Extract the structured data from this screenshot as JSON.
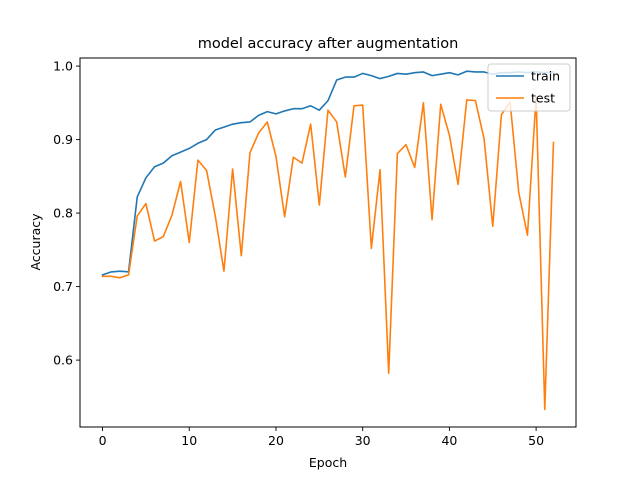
{
  "chart_data": {
    "type": "line",
    "title": "model accuracy after augmentation",
    "xlabel": "Epoch",
    "ylabel": "Accuracy",
    "xlim": [
      -2.6,
      54.6
    ],
    "ylim": [
      0.509,
      1.011
    ],
    "x_ticks": [
      0,
      10,
      20,
      30,
      40,
      50
    ],
    "y_ticks": [
      0.6,
      0.7,
      0.8,
      0.9,
      1.0
    ],
    "x_tick_labels": [
      "0",
      "10",
      "20",
      "30",
      "40",
      "50"
    ],
    "y_tick_labels": [
      "0.6",
      "0.7",
      "0.8",
      "0.9",
      "1.0"
    ],
    "legend_position": "upper-right",
    "grid": false,
    "series": [
      {
        "name": "train",
        "color": "#1f77b4",
        "x": [
          0,
          1,
          2,
          3,
          4,
          5,
          6,
          7,
          8,
          9,
          10,
          11,
          12,
          13,
          14,
          15,
          16,
          17,
          18,
          19,
          20,
          21,
          22,
          23,
          24,
          25,
          26,
          27,
          28,
          29,
          30,
          31,
          32,
          33,
          34,
          35,
          36,
          37,
          38,
          39,
          40,
          41,
          42,
          43,
          44,
          45,
          46,
          47,
          48,
          49,
          50,
          51,
          52
        ],
        "values": [
          0.716,
          0.72,
          0.721,
          0.72,
          0.822,
          0.848,
          0.863,
          0.868,
          0.878,
          0.883,
          0.888,
          0.895,
          0.9,
          0.913,
          0.917,
          0.921,
          0.923,
          0.924,
          0.933,
          0.938,
          0.935,
          0.939,
          0.942,
          0.942,
          0.946,
          0.94,
          0.953,
          0.981,
          0.985,
          0.985,
          0.99,
          0.987,
          0.983,
          0.986,
          0.99,
          0.989,
          0.991,
          0.992,
          0.987,
          0.989,
          0.991,
          0.988,
          0.993,
          0.992,
          0.992,
          0.989,
          0.991,
          0.991,
          0.992,
          0.991,
          0.992,
          0.991,
          0.992
        ]
      },
      {
        "name": "test",
        "color": "#ff7f0e",
        "x": [
          0,
          1,
          2,
          3,
          4,
          5,
          6,
          7,
          8,
          9,
          10,
          11,
          12,
          13,
          14,
          15,
          16,
          17,
          18,
          19,
          20,
          21,
          22,
          23,
          24,
          25,
          26,
          27,
          28,
          29,
          30,
          31,
          32,
          33,
          34,
          35,
          36,
          37,
          38,
          39,
          40,
          41,
          42,
          43,
          44,
          45,
          46,
          47,
          48,
          49,
          50,
          51,
          52
        ],
        "values": [
          0.714,
          0.714,
          0.712,
          0.716,
          0.796,
          0.813,
          0.762,
          0.768,
          0.797,
          0.843,
          0.76,
          0.872,
          0.858,
          0.796,
          0.721,
          0.86,
          0.742,
          0.882,
          0.909,
          0.924,
          0.877,
          0.795,
          0.876,
          0.868,
          0.921,
          0.811,
          0.94,
          0.924,
          0.849,
          0.946,
          0.947,
          0.752,
          0.859,
          0.582,
          0.881,
          0.893,
          0.862,
          0.95,
          0.791,
          0.948,
          0.906,
          0.839,
          0.954,
          0.953,
          0.901,
          0.782,
          0.934,
          0.951,
          0.828,
          0.77,
          0.958,
          0.533,
          0.896
        ]
      }
    ]
  }
}
